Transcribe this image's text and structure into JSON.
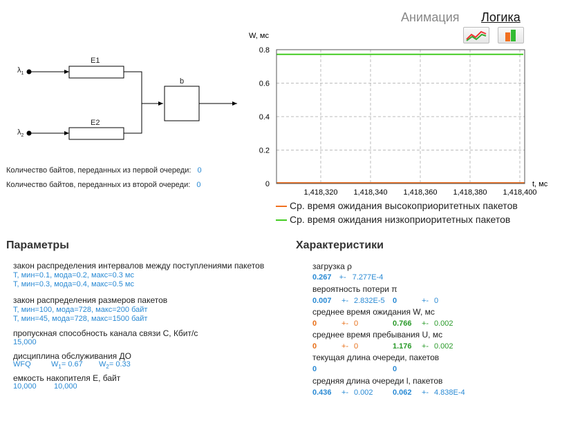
{
  "tabs": {
    "animation": "Анимация",
    "logic": "Логика"
  },
  "diagram": {
    "lambda1": "λ",
    "lambda1_sub": "1",
    "lambda2": "λ",
    "lambda2_sub": "2",
    "queue1": "E1",
    "queue2": "E2",
    "server": "b"
  },
  "bytes": {
    "first_label": "Количество байтов, переданных из первой очереди:",
    "first_value": "0",
    "second_label": "Количество байтов, переданных из второй очереди:",
    "second_value": "0"
  },
  "chart_data": {
    "type": "line",
    "ylabel": "W, мс",
    "xlabel": "t, мс",
    "ylim": [
      0,
      0.8
    ],
    "yticks": [
      "0.8",
      "0.6",
      "0.4",
      "0.2",
      "0"
    ],
    "xticks": [
      "1,418,320",
      "1,418,340",
      "1,418,360",
      "1,418,380",
      "1,418,400"
    ],
    "grid": true,
    "legend_placement": "bottom",
    "series": [
      {
        "name": "Ср. время ожидания высокоприоритетных пакетов",
        "color": "#f07020",
        "value": 0
      },
      {
        "name": "Ср. время ожидания низкоприоритетных пакетов",
        "color": "#44cc22",
        "value": 0.766
      }
    ]
  },
  "params": {
    "title": "Параметры",
    "arrival_label": "закон распределения интервалов между поступлениями пакетов",
    "arrival_1": "T, мин=0.1, мода=0.2, макс=0.3 мс",
    "arrival_2": "T, мин=0.3, мода=0.4, макс=0.5 мс",
    "size_label": "закон распределения размеров пакетов",
    "size_1": "T, мин=100, мода=728, макс=200 байт",
    "size_2": "T, мин=45, мода=728, макс=1500 байт",
    "capacity_label": "пропускная способность канала связи C, Кбит/с",
    "capacity_value": "15,000",
    "discipline_label": "дисциплина обслуживания ДО",
    "discipline_value": "WFQ",
    "w1_label": "W",
    "w1_sub": "1",
    "w1_value": "= 0.67",
    "w2_label": "W",
    "w2_sub": "2",
    "w2_value": "= 0.33",
    "buffer_label": "емкость накопителя E, байт",
    "buffer_1": "10,000",
    "buffer_2": "10,000"
  },
  "chars": {
    "title": "Характеристики",
    "load_label": "загрузка ρ",
    "load_value": "0.267",
    "load_pm": "+-",
    "load_err": "7.277E-4",
    "loss_label": "вероятность потери π",
    "loss_v1": "0.007",
    "loss_pm1": "+-",
    "loss_e1": "2.832E-5",
    "loss_v2": "0",
    "loss_pm2": "+-",
    "loss_e2": "0",
    "wait_label": "среднее время ожидания W, мс",
    "wait_v1": "0",
    "wait_pm1": "+-",
    "wait_e1": "0",
    "wait_v2": "0.766",
    "wait_pm2": "+-",
    "wait_e2": "0.002",
    "stay_label": "среднее время пребывания U, мс",
    "stay_v1": "0",
    "stay_pm1": "+-",
    "stay_e1": "0",
    "stay_v2": "1.176",
    "stay_pm2": "+-",
    "stay_e2": "0.002",
    "qlen_label": "текущая длина очереди, пакетов",
    "qlen_v1": "0",
    "qlen_v2": "0",
    "avgq_label": "средняя длина очереди l, пакетов",
    "avgq_v1": "0.436",
    "avgq_pm1": "+-",
    "avgq_e1": "0.002",
    "avgq_v2": "0.062",
    "avgq_pm2": "+-",
    "avgq_e2": "4.838E-4"
  }
}
